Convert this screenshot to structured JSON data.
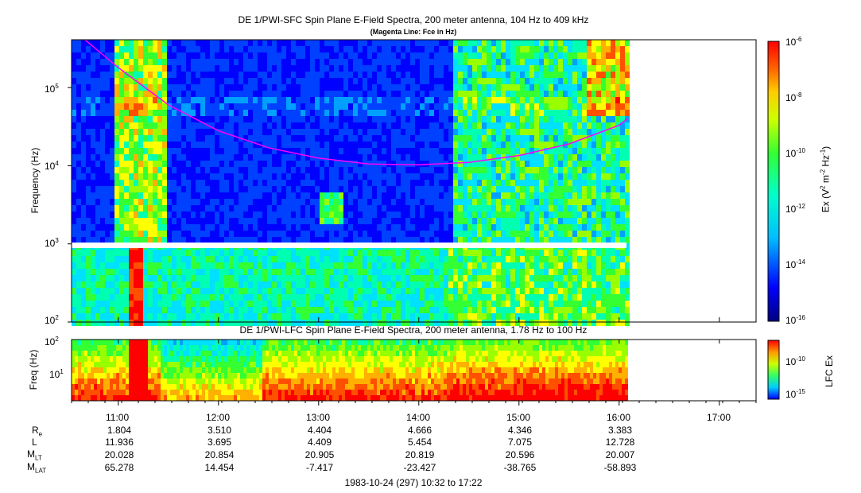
{
  "chart_data": [
    {
      "type": "heatmap",
      "title": "DE 1/PWI-SFC  Spin Plane E-Field Spectra, 200 meter antenna, 104 Hz to 409 kHz",
      "subtitle": "(Magenta Line: Fce in Hz)",
      "ylabel": "Frequency (Hz)",
      "yscale": "log",
      "ylim": [
        100,
        409000
      ],
      "yticks": [
        "10",
        "10",
        "10",
        "10"
      ],
      "ytick_exponents": [
        "2",
        "3",
        "4",
        "5"
      ],
      "colorbar": {
        "label_prefix": "Ex (V",
        "label_sup1": "2",
        "label_mid": " m",
        "label_sup2": "-2",
        "label_mid2": " Hz",
        "label_sup3": "-1",
        "label_suffix": ")",
        "ticks": [
          "10",
          "10",
          "10",
          "10",
          "10",
          "10"
        ],
        "tick_exponents": [
          "-6",
          "-8",
          "-10",
          "-12",
          "-14",
          "-16"
        ],
        "range": [
          1e-16,
          1e-06
        ]
      },
      "fce_line": {
        "color": "#ff00ff",
        "times": [
          "10:40",
          "11:00",
          "11:30",
          "12:00",
          "12:30",
          "13:00",
          "13:30",
          "14:00",
          "14:30",
          "15:00",
          "15:30",
          "16:00",
          "16:05"
        ],
        "values": [
          409000,
          180000,
          60000,
          28000,
          17000,
          12500,
          10500,
          10300,
          11000,
          13500,
          19000,
          33000,
          40000
        ]
      }
    },
    {
      "type": "heatmap",
      "title": "DE 1/PWI-LFC  Spin Plane E-Field Spectra, 200 meter antenna, 1.78 Hz to 100 Hz",
      "ylabel": "Freq (Hz)",
      "yscale": "log",
      "ylim": [
        1.78,
        100
      ],
      "yticks": [
        "10",
        "10"
      ],
      "ytick_exponents": [
        "2",
        "1"
      ],
      "colorbar": {
        "label": "LFC Ex",
        "ticks": [
          "10",
          "10"
        ],
        "tick_exponents": [
          "-10",
          "-15"
        ]
      }
    }
  ],
  "x_axis": {
    "ticks": [
      "11:00",
      "12:00",
      "13:00",
      "14:00",
      "15:00",
      "16:00",
      "17:00"
    ],
    "range": [
      "10:32",
      "17:22"
    ]
  },
  "ephemeris": {
    "labels": [
      {
        "main": "R",
        "sub": "e"
      },
      {
        "main": "L",
        "sub": ""
      },
      {
        "main": "M",
        "sub": "LT"
      },
      {
        "main": "M",
        "sub": "LAT"
      }
    ],
    "rows": [
      [
        "1.804",
        "3.510",
        "4.404",
        "4.666",
        "4.346",
        "3.383"
      ],
      [
        "11.936",
        "3.695",
        "4.409",
        "5.454",
        "7.075",
        "12.728"
      ],
      [
        "20.028",
        "20.854",
        "20.905",
        "20.819",
        "20.596",
        "20.007"
      ],
      [
        "65.278",
        "14.454",
        "-7.417",
        "-23.427",
        "-38.765",
        "-58.893"
      ]
    ]
  },
  "footer": "1983-10-24 (297) 10:32 to 17:22"
}
